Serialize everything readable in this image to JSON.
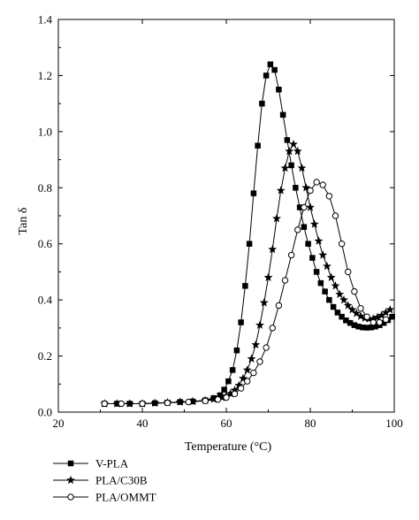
{
  "chart_data": {
    "type": "scatter",
    "title": "",
    "xlabel": "Temperature (°C)",
    "ylabel": "Tan δ",
    "xlim": [
      20,
      100
    ],
    "ylim": [
      0,
      1.4
    ],
    "xticks": [
      "20",
      "40",
      "60",
      "80",
      "100"
    ],
    "yticks": [
      "0.0",
      "0.2",
      "0.4",
      "0.6",
      "0.8",
      "1.0",
      "1.2",
      "1.4"
    ],
    "grid": false,
    "legend_position": "bottom-left",
    "series": [
      {
        "name": "V-PLA",
        "marker": "square",
        "color": "#000000",
        "x": [
          31,
          34,
          37,
          40,
          43,
          46,
          49,
          52,
          55,
          57,
          58.5,
          59.5,
          60.5,
          61.5,
          62.5,
          63.5,
          64.5,
          65.5,
          66.5,
          67.5,
          68.5,
          69.5,
          70.5,
          71.5,
          72.5,
          73.5,
          74.5,
          75.5,
          76.5,
          77.5,
          78.5,
          79.5,
          80.5,
          81.5,
          82.5,
          83.5,
          84.5,
          85.5,
          86.5,
          87.5,
          88.5,
          89.5,
          90.5,
          91.5,
          92.5,
          93.5,
          94.5,
          95.5,
          96.5,
          97.5,
          98.5,
          99.5
        ],
        "y": [
          0.03,
          0.03,
          0.03,
          0.03,
          0.032,
          0.034,
          0.036,
          0.038,
          0.042,
          0.05,
          0.06,
          0.08,
          0.11,
          0.15,
          0.22,
          0.32,
          0.45,
          0.6,
          0.78,
          0.95,
          1.1,
          1.2,
          1.24,
          1.22,
          1.15,
          1.06,
          0.97,
          0.88,
          0.8,
          0.73,
          0.66,
          0.6,
          0.55,
          0.5,
          0.46,
          0.43,
          0.4,
          0.375,
          0.355,
          0.34,
          0.327,
          0.318,
          0.31,
          0.305,
          0.302,
          0.301,
          0.302,
          0.305,
          0.31,
          0.318,
          0.328,
          0.34
        ]
      },
      {
        "name": "PLA/C30B",
        "marker": "star",
        "color": "#000000",
        "x": [
          31,
          34,
          37,
          40,
          43,
          46,
          49,
          52,
          55,
          57,
          59,
          60,
          61,
          62,
          63,
          64,
          65,
          66,
          67,
          68,
          69,
          70,
          71,
          72,
          73,
          74,
          75,
          76,
          77,
          78,
          79,
          80,
          81,
          82,
          83,
          84,
          85,
          86,
          87,
          88,
          89,
          90,
          91,
          92,
          93,
          94,
          95,
          96,
          97,
          98,
          99
        ],
        "y": [
          0.03,
          0.03,
          0.03,
          0.03,
          0.032,
          0.034,
          0.036,
          0.038,
          0.042,
          0.046,
          0.052,
          0.058,
          0.066,
          0.078,
          0.095,
          0.12,
          0.15,
          0.19,
          0.24,
          0.31,
          0.39,
          0.48,
          0.58,
          0.69,
          0.79,
          0.87,
          0.93,
          0.955,
          0.93,
          0.87,
          0.8,
          0.73,
          0.67,
          0.61,
          0.56,
          0.52,
          0.48,
          0.45,
          0.42,
          0.4,
          0.38,
          0.365,
          0.352,
          0.342,
          0.335,
          0.332,
          0.333,
          0.338,
          0.345,
          0.355,
          0.365
        ]
      },
      {
        "name": "PLA/OMMT",
        "marker": "open-circle",
        "color": "#000000",
        "x": [
          31,
          35,
          40,
          46,
          51,
          55,
          58,
          60,
          62,
          63.5,
          65,
          66.5,
          68,
          69.5,
          71,
          72.5,
          74,
          75.5,
          77,
          78.5,
          80,
          81.5,
          83,
          84.5,
          86,
          87.5,
          89,
          90.5,
          92,
          93.5,
          95,
          96.5,
          98
        ],
        "y": [
          0.03,
          0.03,
          0.03,
          0.033,
          0.036,
          0.04,
          0.045,
          0.052,
          0.065,
          0.085,
          0.11,
          0.14,
          0.18,
          0.23,
          0.3,
          0.38,
          0.47,
          0.56,
          0.65,
          0.73,
          0.79,
          0.82,
          0.81,
          0.77,
          0.7,
          0.6,
          0.5,
          0.43,
          0.37,
          0.34,
          0.32,
          0.32,
          0.33
        ]
      }
    ]
  }
}
